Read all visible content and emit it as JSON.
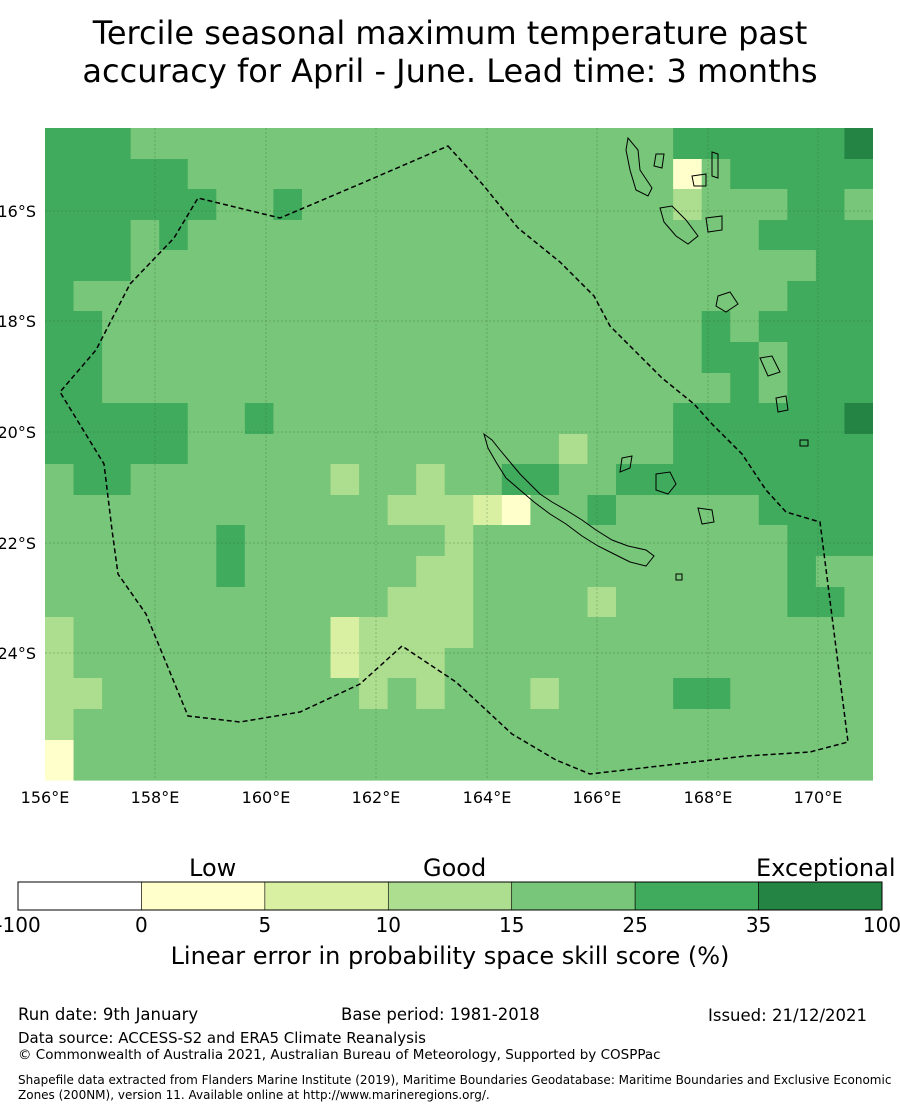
{
  "title": {
    "line1": "Tercile seasonal maximum temperature past",
    "line2": "accuracy for April - June. Lead time: 3 months"
  },
  "map": {
    "lon_labels": [
      "156°E",
      "158°E",
      "160°E",
      "162°E",
      "164°E",
      "166°E",
      "168°E",
      "170°E"
    ],
    "lat_labels": [
      "16°S",
      "18°S",
      "20°S",
      "22°S",
      "24°S"
    ],
    "colors": {
      "c0": "#ffffcc",
      "c1": "#d9f0a3",
      "c2": "#addd8e",
      "c3": "#78c679",
      "c4": "#41ab5d",
      "c5": "#238443"
    },
    "grid_rows": [
      "44433333333333333333334444445",
      "44444333333333333333330344444",
      "44444433433333333333332333443",
      "44434333333333333333333334444",
      "44433333333333333333333333344",
      "43333333333333333333333333444",
      "44333333333333333333333434444",
      "44333333333333333333333443444",
      "44333333333333333333333343444",
      "44444334333333333333334444445",
      "44444333333333333323334444444",
      "34433333332332334433444444444",
      "33333333333322210334333334444",
      "33333343333333233333333333444",
      "33333343333332233333333333433",
      "33333333333322233332333333443",
      "23333333331222233333333333333",
      "23333333331222333333333333333",
      "22333333333232333233334433333",
      "23333333333333333333333333333",
      "03333333333333333333333333333"
    ]
  },
  "legend": {
    "low": "Low",
    "good": "Good",
    "exceptional": "Exceptional",
    "ticks": [
      "-100",
      "0",
      "5",
      "10",
      "15",
      "25",
      "35",
      "100"
    ],
    "colors": [
      "#ffffff",
      "#ffffcc",
      "#d9f0a3",
      "#addd8e",
      "#78c679",
      "#41ab5d",
      "#238443"
    ],
    "label": "Linear error in probability space skill score (%)"
  },
  "footer": {
    "run_date": "Run date: 9th January",
    "base_period": "Base period: 1981-2018",
    "issued": "Issued: 21/12/2021",
    "data_source": "Data source: ACCESS-S2 and ERA5 Climate Reanalysis",
    "copyright": "© Commonwealth of Australia 2021, Australian Bureau of Meteorology, Supported by COSPPac",
    "shapefile": "Shapefile data extracted from Flanders Marine Institute (2019), Maritime Boundaries Geodatabase: Maritime Boundaries and Exclusive Economic Zones (200NM), version 11. Available online at http://www.marineregions.org/."
  }
}
